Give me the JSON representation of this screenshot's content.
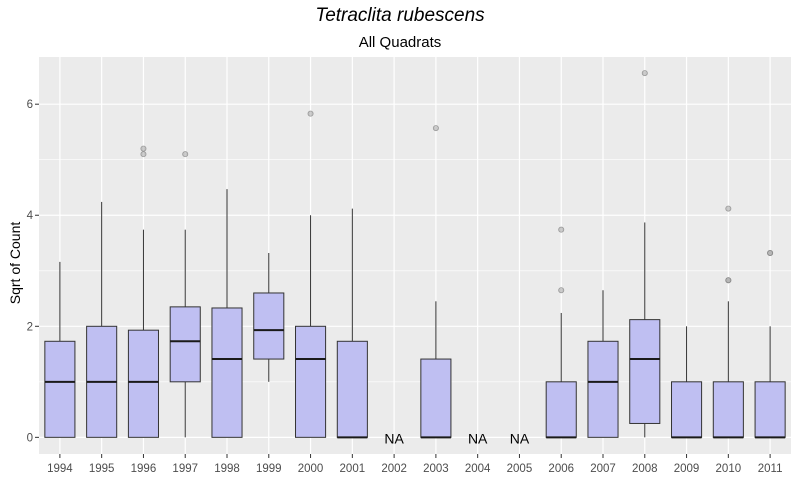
{
  "chart_data": {
    "type": "boxplot",
    "title": "Tetraclita rubescens",
    "subtitle": "All Quadrats",
    "xlabel": "",
    "ylabel": "Sqrt of Count",
    "ylim": [
      -0.3,
      6.85
    ],
    "yticks": [
      0,
      2,
      4,
      6
    ],
    "grid": true,
    "na_label": "NA",
    "colors": {
      "box_fill": "#bfbff2",
      "box_stroke": "#333333",
      "panel": "#ebebeb",
      "grid": "#ffffff",
      "outlier": "#a6a6a6"
    },
    "categories": [
      "1994",
      "1995",
      "1996",
      "1997",
      "1998",
      "1999",
      "2000",
      "2001",
      "2002",
      "2003",
      "2004",
      "2005",
      "2006",
      "2007",
      "2008",
      "2009",
      "2010",
      "2011"
    ],
    "boxes": [
      {
        "year": "1994",
        "min": 0,
        "q1": 0,
        "median": 1,
        "q3": 1.73,
        "max": 3.16,
        "outliers": []
      },
      {
        "year": "1995",
        "min": 0,
        "q1": 0,
        "median": 1,
        "q3": 2,
        "max": 4.24,
        "outliers": []
      },
      {
        "year": "1996",
        "min": 0,
        "q1": 0,
        "median": 1,
        "q3": 1.93,
        "max": 3.74,
        "outliers": [
          5.1,
          5.2
        ]
      },
      {
        "year": "1997",
        "min": 0,
        "q1": 1,
        "median": 1.73,
        "q3": 2.35,
        "max": 3.74,
        "outliers": [
          5.1
        ]
      },
      {
        "year": "1998",
        "min": 0,
        "q1": 0,
        "median": 1.41,
        "q3": 2.33,
        "max": 4.47,
        "outliers": []
      },
      {
        "year": "1999",
        "min": 1,
        "q1": 1.41,
        "median": 1.93,
        "q3": 2.6,
        "max": 3.32,
        "outliers": []
      },
      {
        "year": "2000",
        "min": 0,
        "q1": 0,
        "median": 1.41,
        "q3": 2,
        "max": 4,
        "outliers": [
          5.83
        ]
      },
      {
        "year": "2001",
        "min": 0,
        "q1": 0,
        "median": 0,
        "q3": 1.73,
        "max": 4.12,
        "outliers": []
      },
      {
        "year": "2002",
        "na": true
      },
      {
        "year": "2003",
        "min": 0,
        "q1": 0,
        "median": 0,
        "q3": 1.41,
        "max": 2.45,
        "outliers": [
          5.57
        ]
      },
      {
        "year": "2004",
        "na": true
      },
      {
        "year": "2005",
        "na": true
      },
      {
        "year": "2006",
        "min": 0,
        "q1": 0,
        "median": 0,
        "q3": 1,
        "max": 2.24,
        "outliers": [
          2.65,
          3.74
        ]
      },
      {
        "year": "2007",
        "min": 0,
        "q1": 0,
        "median": 1,
        "q3": 1.73,
        "max": 2.65,
        "outliers": []
      },
      {
        "year": "2008",
        "min": 0,
        "q1": 0.25,
        "median": 1.41,
        "q3": 2.12,
        "max": 3.87,
        "outliers": [
          6.56
        ]
      },
      {
        "year": "2009",
        "min": 0,
        "q1": 0,
        "median": 0,
        "q3": 1,
        "max": 2,
        "outliers": []
      },
      {
        "year": "2010",
        "min": 0,
        "q1": 0,
        "median": 0,
        "q3": 1,
        "max": 2.45,
        "outliers": [
          2.83,
          2.83,
          4.12
        ]
      },
      {
        "year": "2011",
        "min": 0,
        "q1": 0,
        "median": 0,
        "q3": 1,
        "max": 2,
        "outliers": [
          3.32,
          3.32
        ]
      }
    ]
  }
}
